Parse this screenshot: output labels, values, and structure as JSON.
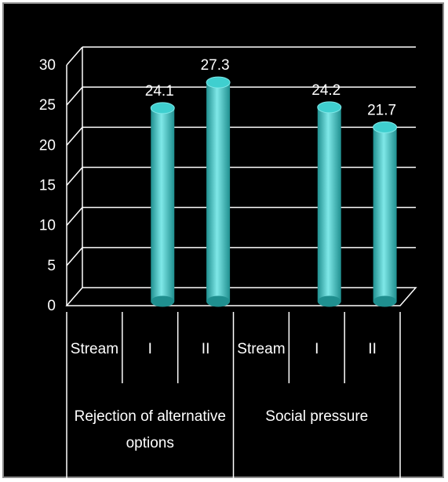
{
  "chart_data": {
    "type": "bar",
    "style": "3d-cylinder",
    "title": "",
    "xlabel": "",
    "ylabel": "",
    "ylim": [
      0,
      30
    ],
    "y_ticks": [
      "0",
      "5",
      "10",
      "15",
      "20",
      "25",
      "30"
    ],
    "grid": true,
    "legend": "none",
    "groups": [
      {
        "name": "Rejection of alternative options",
        "categories": [
          "Stream",
          "I",
          "II"
        ],
        "values": [
          null,
          24.1,
          27.3
        ],
        "labels": [
          "",
          "24.1",
          "27.3"
        ]
      },
      {
        "name": "Social pressure",
        "categories": [
          "Stream",
          "I",
          "II"
        ],
        "values": [
          null,
          24.2,
          21.7
        ],
        "labels": [
          "",
          "24.2",
          "21.7"
        ]
      }
    ],
    "colors": {
      "background": "#000000",
      "gridline": "#ffffff",
      "text": "#ffffff",
      "bar_dark": "#1f8f8f",
      "bar_mid": "#3fcfcf",
      "bar_light": "#7fe8e8"
    }
  }
}
